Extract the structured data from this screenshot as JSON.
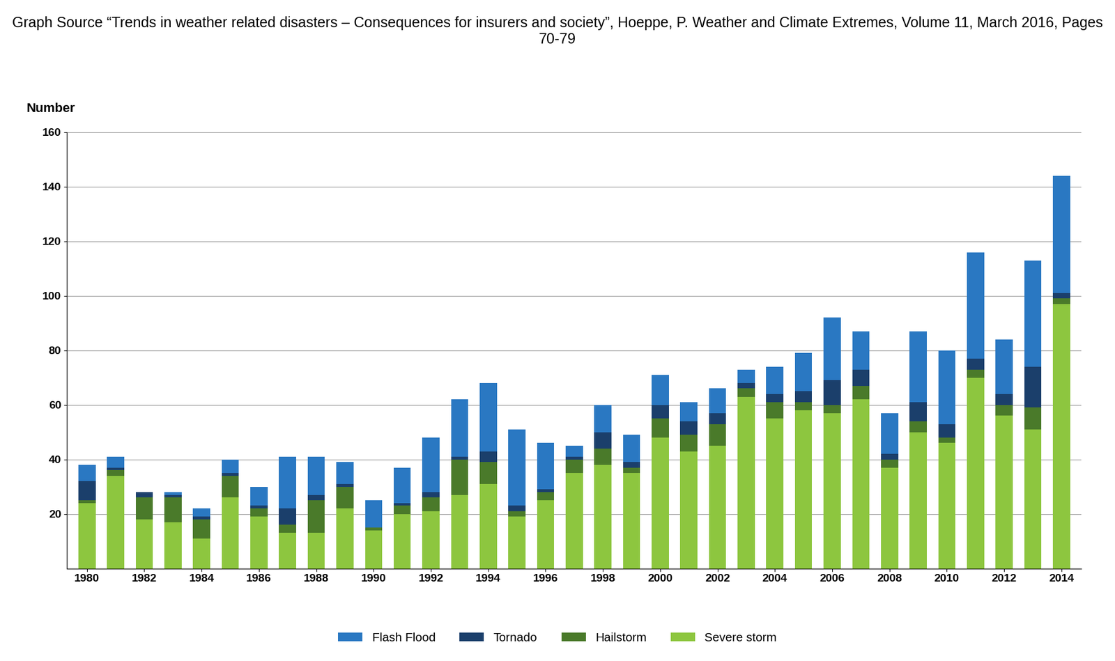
{
  "chart_data": {
    "type": "bar",
    "stacked": true,
    "annotation": "Graph Source “Trends in weather related disasters – Consequences for insurers and society”, Hoeppe, P. Weather and Climate Extremes, Volume 11, March 2016, Pages 70-79",
    "y_label": "Number",
    "categories": [
      "1980",
      null,
      "1982",
      null,
      "1984",
      null,
      "1986",
      null,
      "1988",
      null,
      "1990",
      null,
      "1992",
      null,
      "1994",
      null,
      "1996",
      null,
      "1998",
      null,
      "2000",
      null,
      "2002",
      null,
      "2004",
      null,
      "2006",
      null,
      "2008",
      null,
      "2010",
      null,
      "2012",
      null,
      "2014"
    ],
    "series": [
      {
        "name": "Flash Flood",
        "color": "#2a78c2",
        "values": [
          6,
          4,
          0,
          1,
          3,
          5,
          7,
          19,
          14,
          8,
          10,
          13,
          20,
          21,
          25,
          28,
          17,
          4,
          10,
          10,
          11,
          7,
          9,
          5,
          10,
          14,
          23,
          14,
          15,
          26,
          27,
          39,
          20,
          39,
          43
        ]
      },
      {
        "name": "Tornado",
        "color": "#1b3f6b",
        "values": [
          7,
          1,
          2,
          1,
          1,
          1,
          1,
          6,
          2,
          1,
          0,
          1,
          2,
          1,
          4,
          2,
          1,
          1,
          6,
          2,
          5,
          5,
          4,
          2,
          3,
          4,
          9,
          6,
          2,
          7,
          5,
          4,
          4,
          15,
          2
        ]
      },
      {
        "name": "Hailstorm",
        "color": "#4a7a2a",
        "values": [
          1,
          2,
          8,
          9,
          7,
          8,
          3,
          3,
          12,
          8,
          1,
          3,
          5,
          13,
          8,
          2,
          3,
          5,
          6,
          2,
          7,
          6,
          8,
          3,
          6,
          3,
          3,
          5,
          3,
          4,
          2,
          3,
          4,
          8,
          2
        ]
      },
      {
        "name": "Severe storm",
        "color": "#8dc63f",
        "values": [
          24,
          34,
          18,
          17,
          11,
          26,
          19,
          13,
          13,
          22,
          14,
          20,
          21,
          27,
          31,
          19,
          25,
          35,
          38,
          35,
          48,
          43,
          45,
          63,
          55,
          58,
          57,
          62,
          37,
          50,
          46,
          70,
          56,
          51,
          97
        ]
      }
    ],
    "ylim": [
      0,
      160
    ],
    "yticks": [
      20,
      40,
      60,
      80,
      100,
      120,
      140,
      160
    ],
    "grid": true,
    "legend": "lower center"
  }
}
